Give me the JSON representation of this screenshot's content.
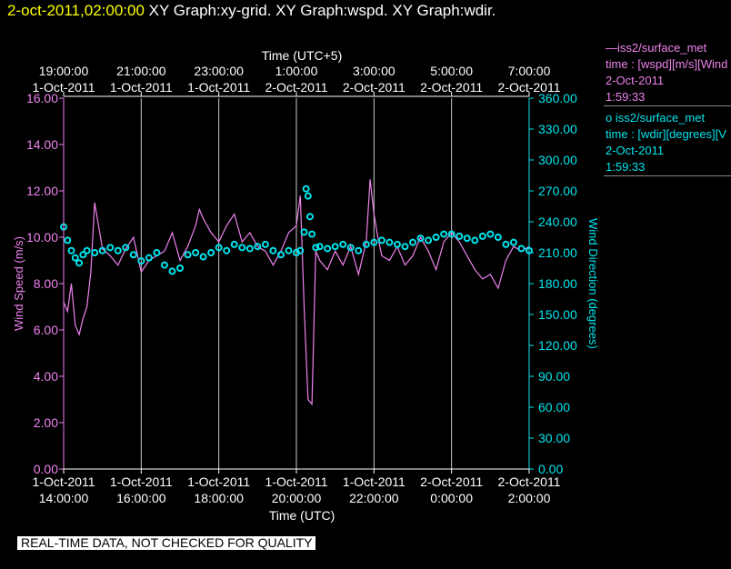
{
  "header": {
    "timestamp": "2-oct-2011,02:00:00",
    "graphs": "XY Graph:xy-grid.  XY Graph:wspd.  XY Graph:wdir."
  },
  "legend": [
    {
      "label": "—iss2/surface_met",
      "line2": "time : [wspd][m/s][Wind",
      "line3": "2-Oct-2011",
      "line4": "1:59:33"
    },
    {
      "label": "o iss2/surface_met",
      "line2": "time : [wdir][degrees][V",
      "line3": "2-Oct-2011",
      "line4": "1:59:33"
    }
  ],
  "disclaimer": "REAL-TIME DATA, NOT CHECKED FOR QUALITY",
  "colors": {
    "wspd": "#ee82ee",
    "wdir": "#00e5ee",
    "grid": "#c8c8c8",
    "header_ts": "#ffff00"
  },
  "chart_data": {
    "type": "line",
    "top_axis_title": "Time (UTC+5)",
    "bottom_axis_title": "Time (UTC)",
    "xlabel": "Time (UTC)",
    "ylabel_left": "Wind Speed (m/s)",
    "ylabel_right": "Wind Direction (degrees)",
    "x_range_hours": [
      0,
      12
    ],
    "ylim_left": [
      0,
      16
    ],
    "ylim_right": [
      0,
      360
    ],
    "grid": true,
    "bottom_ticks": [
      {
        "hour": 0,
        "line1": "1-Oct-2011",
        "line2": "14:00:00"
      },
      {
        "hour": 2,
        "line1": "1-Oct-2011",
        "line2": "16:00:00"
      },
      {
        "hour": 4,
        "line1": "1-Oct-2011",
        "line2": "18:00:00"
      },
      {
        "hour": 6,
        "line1": "1-Oct-2011",
        "line2": "20:00:00"
      },
      {
        "hour": 8,
        "line1": "1-Oct-2011",
        "line2": "22:00:00"
      },
      {
        "hour": 10,
        "line1": "2-Oct-2011",
        "line2": "0:00:00"
      },
      {
        "hour": 12,
        "line1": "2-Oct-2011",
        "line2": "2:00:00"
      }
    ],
    "top_ticks": [
      {
        "hour": 0,
        "line1": "19:00:00",
        "line2": "1-Oct-2011"
      },
      {
        "hour": 2,
        "line1": "21:00:00",
        "line2": "1-Oct-2011"
      },
      {
        "hour": 4,
        "line1": "23:00:00",
        "line2": "1-Oct-2011"
      },
      {
        "hour": 6,
        "line1": "1:00:00",
        "line2": "2-Oct-2011"
      },
      {
        "hour": 8,
        "line1": "3:00:00",
        "line2": "2-Oct-2011"
      },
      {
        "hour": 10,
        "line1": "5:00:00",
        "line2": "2-Oct-2011"
      },
      {
        "hour": 12,
        "line1": "7:00:00",
        "line2": "2-Oct-2011"
      }
    ],
    "left_ticks": [
      "0.00",
      "2.00",
      "4.00",
      "6.00",
      "8.00",
      "10.00",
      "12.00",
      "14.00",
      "16.00"
    ],
    "left_tick_values": [
      0,
      2,
      4,
      6,
      8,
      10,
      12,
      14,
      16
    ],
    "right_ticks": [
      "0.00",
      "30.00",
      "60.00",
      "90.00",
      "120.00",
      "150.00",
      "180.00",
      "210.00",
      "240.00",
      "270.00",
      "300.00",
      "330.00",
      "360.00"
    ],
    "right_tick_values": [
      0,
      30,
      60,
      90,
      120,
      150,
      180,
      210,
      240,
      270,
      300,
      330,
      360
    ],
    "series": [
      {
        "name": "iss2/surface_met wspd",
        "axis": "left",
        "style": "line",
        "x_hours": [
          0,
          0.1,
          0.2,
          0.3,
          0.4,
          0.5,
          0.6,
          0.7,
          0.8,
          0.9,
          1.0,
          1.2,
          1.4,
          1.6,
          1.8,
          2.0,
          2.2,
          2.4,
          2.6,
          2.8,
          3.0,
          3.2,
          3.4,
          3.5,
          3.6,
          3.8,
          4.0,
          4.2,
          4.4,
          4.6,
          4.8,
          5.0,
          5.2,
          5.4,
          5.6,
          5.8,
          6.0,
          6.1,
          6.2,
          6.3,
          6.4,
          6.5,
          6.6,
          6.8,
          7.0,
          7.2,
          7.4,
          7.6,
          7.8,
          7.9,
          8.0,
          8.1,
          8.2,
          8.4,
          8.6,
          8.8,
          9.0,
          9.2,
          9.4,
          9.6,
          9.8,
          10.0,
          10.2,
          10.4,
          10.6,
          10.8,
          11.0,
          11.2,
          11.4,
          11.6,
          11.8,
          12.0
        ],
        "values": [
          7.2,
          6.8,
          8.0,
          6.2,
          5.8,
          6.5,
          7.0,
          8.5,
          11.5,
          10.5,
          9.5,
          9.2,
          8.8,
          9.5,
          10.0,
          8.5,
          9.0,
          9.2,
          9.4,
          10.2,
          9.0,
          9.6,
          10.5,
          11.2,
          10.8,
          10.2,
          9.8,
          10.5,
          11.0,
          9.8,
          10.2,
          9.6,
          9.4,
          8.8,
          9.4,
          10.2,
          10.5,
          11.8,
          7.0,
          3.0,
          2.8,
          9.4,
          9.0,
          8.6,
          9.4,
          8.8,
          9.6,
          8.4,
          9.8,
          12.5,
          11.0,
          10.0,
          9.2,
          9.0,
          9.6,
          8.8,
          9.2,
          10.0,
          9.4,
          8.6,
          9.8,
          10.2,
          9.8,
          9.2,
          8.6,
          8.2,
          8.4,
          7.8,
          9.0,
          9.6,
          9.4,
          9.6
        ]
      },
      {
        "name": "iss2/surface_met wdir",
        "axis": "right",
        "style": "markers",
        "x_hours": [
          0,
          0.1,
          0.2,
          0.3,
          0.4,
          0.5,
          0.6,
          0.8,
          1.0,
          1.2,
          1.4,
          1.6,
          1.8,
          2.0,
          2.2,
          2.4,
          2.6,
          2.8,
          3.0,
          3.2,
          3.4,
          3.6,
          3.8,
          4.0,
          4.2,
          4.4,
          4.6,
          4.8,
          5.0,
          5.2,
          5.4,
          5.6,
          5.8,
          6.0,
          6.1,
          6.2,
          6.25,
          6.3,
          6.35,
          6.4,
          6.5,
          6.6,
          6.8,
          7.0,
          7.2,
          7.4,
          7.6,
          7.8,
          8.0,
          8.2,
          8.4,
          8.6,
          8.8,
          9.0,
          9.2,
          9.4,
          9.6,
          9.8,
          10.0,
          10.2,
          10.4,
          10.6,
          10.8,
          11.0,
          11.2,
          11.4,
          11.6,
          11.8,
          12.0
        ],
        "values": [
          235,
          222,
          212,
          205,
          200,
          208,
          212,
          210,
          212,
          215,
          212,
          215,
          208,
          202,
          205,
          210,
          198,
          192,
          195,
          208,
          210,
          206,
          210,
          215,
          212,
          218,
          215,
          214,
          216,
          218,
          212,
          208,
          212,
          210,
          212,
          230,
          272,
          265,
          245,
          228,
          215,
          216,
          214,
          216,
          218,
          215,
          212,
          218,
          220,
          222,
          220,
          218,
          216,
          220,
          224,
          222,
          225,
          228,
          228,
          226,
          224,
          222,
          226,
          228,
          225,
          218,
          220,
          214,
          212
        ]
      }
    ]
  }
}
